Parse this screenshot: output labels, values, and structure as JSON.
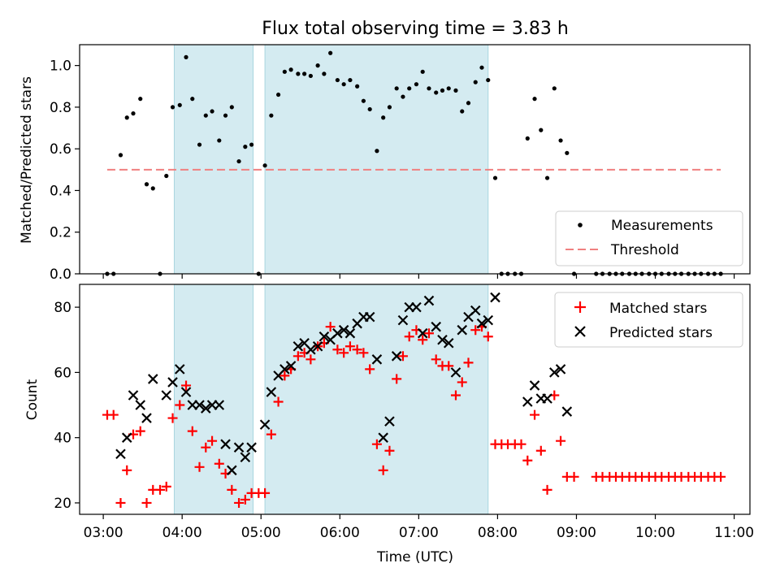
{
  "chart_data": {
    "type": "scatter",
    "title": "Flux total observing time = 3.83 h",
    "xlabel": "Time (UTC)",
    "x_units": "hours (UTC)",
    "xlim": [
      2.7,
      11.2
    ],
    "x_ticks": [
      3,
      4,
      5,
      6,
      7,
      8,
      9,
      10,
      11
    ],
    "x_tick_labels": [
      "03:00",
      "04:00",
      "05:00",
      "06:00",
      "07:00",
      "08:00",
      "09:00",
      "10:00",
      "11:00"
    ],
    "shaded_intervals": [
      [
        3.9,
        4.9
      ],
      [
        5.05,
        7.88
      ]
    ],
    "shade_color": "#d4ebf1",
    "panels": [
      {
        "ylabel": "Matched/Predicted stars",
        "ylim": [
          0,
          1.1
        ],
        "y_ticks": [
          0.0,
          0.2,
          0.4,
          0.6,
          0.8,
          1.0
        ],
        "y_tick_labels": [
          "0.0",
          "0.2",
          "0.4",
          "0.6",
          "0.8",
          "1.0"
        ],
        "legend_position": "lower-right",
        "threshold": {
          "name": "Threshold",
          "y": 0.5,
          "x_range": [
            3.05,
            10.83
          ],
          "color": "#f08080"
        },
        "series": [
          {
            "name": "Measurements",
            "marker": "dot",
            "color": "#000000",
            "x": [
              3.05,
              3.13,
              3.22,
              3.3,
              3.38,
              3.47,
              3.55,
              3.63,
              3.72,
              3.8,
              3.88,
              3.97,
              4.05,
              4.13,
              4.22,
              4.3,
              4.38,
              4.47,
              4.55,
              4.63,
              4.72,
              4.8,
              4.88,
              4.97,
              5.05,
              5.13,
              5.22,
              5.3,
              5.38,
              5.47,
              5.55,
              5.63,
              5.72,
              5.8,
              5.88,
              5.97,
              6.05,
              6.13,
              6.22,
              6.3,
              6.38,
              6.47,
              6.55,
              6.63,
              6.72,
              6.8,
              6.88,
              6.97,
              7.05,
              7.13,
              7.22,
              7.3,
              7.38,
              7.47,
              7.55,
              7.63,
              7.72,
              7.8,
              7.88,
              7.97,
              8.05,
              8.13,
              8.22,
              8.3,
              8.38,
              8.47,
              8.55,
              8.63,
              8.72,
              8.8,
              8.88,
              8.97,
              9.25,
              9.33,
              9.42,
              9.5,
              9.58,
              9.67,
              9.75,
              9.83,
              9.92,
              10.0,
              10.08,
              10.17,
              10.25,
              10.33,
              10.42,
              10.5,
              10.58,
              10.67,
              10.75,
              10.83
            ],
            "y": [
              0,
              0,
              0.57,
              0.75,
              0.77,
              0.84,
              0.43,
              0.41,
              0,
              0.47,
              0.8,
              0.81,
              1.04,
              0.84,
              0.62,
              0.76,
              0.78,
              0.64,
              0.76,
              0.8,
              0.54,
              0.61,
              0.62,
              0,
              0.52,
              0.76,
              0.86,
              0.97,
              0.98,
              0.96,
              0.96,
              0.95,
              1.0,
              0.96,
              1.06,
              0.93,
              0.91,
              0.93,
              0.9,
              0.83,
              0.79,
              0.59,
              0.75,
              0.8,
              0.89,
              0.85,
              0.89,
              0.91,
              0.97,
              0.89,
              0.87,
              0.88,
              0.89,
              0.88,
              0.78,
              0.82,
              0.92,
              0.99,
              0.93,
              0.46,
              0,
              0,
              0,
              0,
              0.65,
              0.84,
              0.69,
              0.46,
              0.89,
              0.64,
              0.58,
              0,
              0,
              0,
              0,
              0,
              0,
              0,
              0,
              0,
              0,
              0,
              0,
              0,
              0,
              0,
              0,
              0,
              0,
              0,
              0,
              0
            ]
          }
        ]
      },
      {
        "ylabel": "Count",
        "ylim": [
          16.5,
          87
        ],
        "y_ticks": [
          20,
          40,
          60,
          80
        ],
        "y_tick_labels": [
          "20",
          "40",
          "60",
          "80"
        ],
        "legend_position": "upper-right",
        "series": [
          {
            "name": "Matched stars",
            "marker": "plus",
            "color": "#ff0000",
            "x": [
              3.05,
              3.13,
              3.22,
              3.3,
              3.38,
              3.47,
              3.55,
              3.63,
              3.72,
              3.8,
              3.88,
              3.97,
              4.05,
              4.13,
              4.22,
              4.3,
              4.38,
              4.47,
              4.55,
              4.63,
              4.72,
              4.8,
              4.88,
              4.97,
              5.05,
              5.13,
              5.22,
              5.3,
              5.38,
              5.47,
              5.55,
              5.63,
              5.72,
              5.8,
              5.88,
              5.97,
              6.05,
              6.13,
              6.22,
              6.3,
              6.38,
              6.47,
              6.55,
              6.63,
              6.72,
              6.8,
              6.88,
              6.97,
              7.05,
              7.13,
              7.22,
              7.3,
              7.38,
              7.47,
              7.55,
              7.63,
              7.72,
              7.8,
              7.88,
              7.97,
              8.05,
              8.13,
              8.22,
              8.3,
              8.38,
              8.47,
              8.55,
              8.63,
              8.72,
              8.8,
              8.88,
              8.97,
              9.25,
              9.33,
              9.42,
              9.5,
              9.58,
              9.67,
              9.75,
              9.83,
              9.92,
              10.0,
              10.08,
              10.17,
              10.25,
              10.33,
              10.42,
              10.5,
              10.58,
              10.67,
              10.75,
              10.83
            ],
            "y": [
              47,
              47,
              20,
              30,
              41,
              42,
              20,
              24,
              24,
              25,
              46,
              50,
              56,
              42,
              31,
              37,
              39,
              32,
              29,
              24,
              20,
              21,
              23,
              23,
              23,
              41,
              51,
              59,
              61,
              65,
              66,
              64,
              68,
              69,
              74,
              67,
              66,
              68,
              67,
              66,
              61,
              38,
              30,
              36,
              58,
              65,
              71,
              73,
              70,
              72,
              64,
              62,
              62,
              53,
              57,
              63,
              73,
              74,
              71,
              38,
              38,
              38,
              38,
              38,
              33,
              47,
              36,
              24,
              53,
              39,
              28,
              28,
              28,
              28,
              28,
              28,
              28,
              28,
              28,
              28,
              28,
              28,
              28,
              28,
              28,
              28,
              28,
              28,
              28,
              28,
              28,
              28
            ]
          },
          {
            "name": "Predicted stars",
            "marker": "x",
            "color": "#000000",
            "x": [
              3.22,
              3.3,
              3.38,
              3.47,
              3.55,
              3.63,
              3.8,
              3.88,
              3.97,
              4.05,
              4.13,
              4.22,
              4.3,
              4.38,
              4.47,
              4.55,
              4.63,
              4.72,
              4.8,
              4.88,
              5.05,
              5.13,
              5.22,
              5.3,
              5.38,
              5.47,
              5.55,
              5.63,
              5.72,
              5.8,
              5.88,
              5.97,
              6.05,
              6.13,
              6.22,
              6.3,
              6.38,
              6.47,
              6.55,
              6.63,
              6.72,
              6.8,
              6.88,
              6.97,
              7.05,
              7.13,
              7.22,
              7.3,
              7.38,
              7.47,
              7.55,
              7.63,
              7.72,
              7.8,
              7.88,
              7.97,
              8.38,
              8.47,
              8.55,
              8.63,
              8.72,
              8.8,
              8.88
            ],
            "y": [
              35,
              40,
              53,
              50,
              46,
              58,
              53,
              57,
              61,
              54,
              50,
              50,
              49,
              50,
              50,
              38,
              30,
              37,
              34,
              37,
              44,
              54,
              59,
              61,
              62,
              68,
              69,
              67,
              68,
              71,
              70,
              72,
              73,
              72,
              75,
              77,
              77,
              64,
              40,
              45,
              65,
              76,
              80,
              80,
              72,
              82,
              74,
              70,
              69,
              60,
              73,
              77,
              79,
              75,
              76,
              83,
              51,
              56,
              52,
              52,
              60,
              61,
              48
            ]
          }
        ]
      }
    ]
  }
}
